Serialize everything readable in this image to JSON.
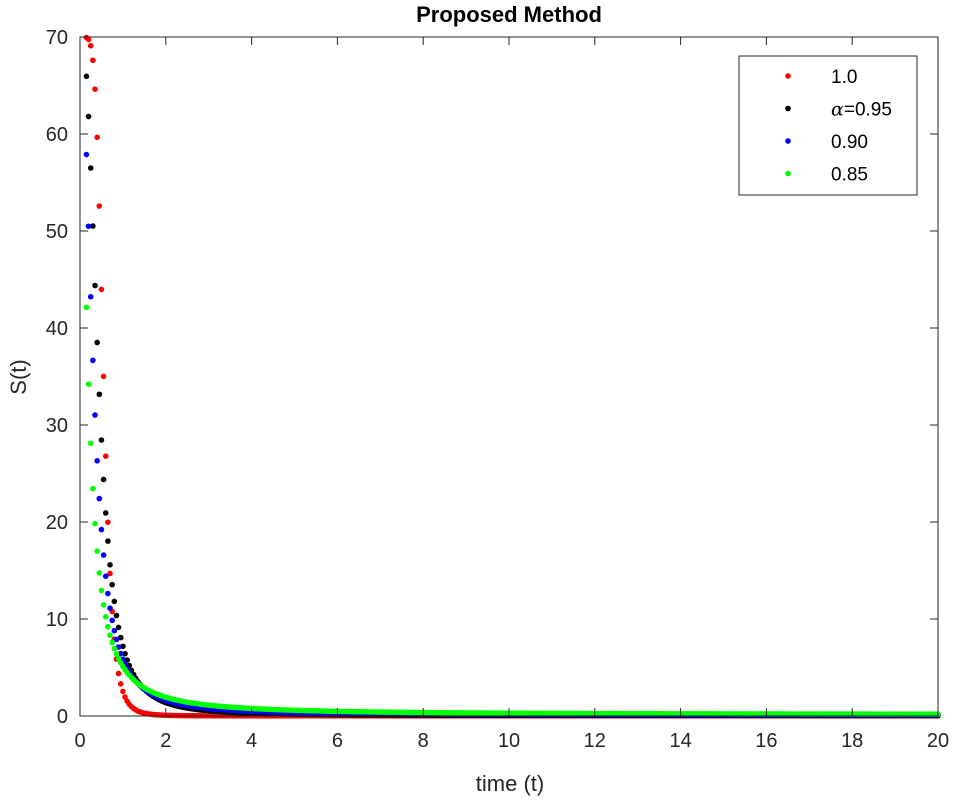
{
  "chart_data": {
    "type": "scatter",
    "title": "Proposed Method",
    "xlabel": "time (t)",
    "ylabel": "S(t)",
    "xlim": [
      0,
      20
    ],
    "ylim": [
      0,
      70
    ],
    "xticks": [
      "0",
      "2",
      "4",
      "6",
      "8",
      "10",
      "12",
      "14",
      "16",
      "18",
      "20"
    ],
    "yticks": [
      "0",
      "10",
      "20",
      "30",
      "40",
      "50",
      "60",
      "70"
    ],
    "grid": false,
    "legend_position": "top-right",
    "legend_prefix": "α=",
    "series": [
      {
        "name": "1.0",
        "legend": "1.0",
        "color": "#ff0000",
        "alpha": 1.0,
        "initial": 70,
        "tail": 0.02
      },
      {
        "name": "0.95",
        "legend": "0.95",
        "color": "#000000",
        "alpha": 0.95,
        "initial": 70,
        "tail": 0.1
      },
      {
        "name": "0.90",
        "legend": "0.90",
        "color": "#0000ff",
        "alpha": 0.9,
        "initial": 70,
        "tail": 0.2
      },
      {
        "name": "0.85",
        "legend": "0.85",
        "color": "#00ff00",
        "alpha": 0.85,
        "initial": 70,
        "tail": 0.3
      }
    ],
    "x_start": 0.15,
    "x_step": 0.05
  }
}
